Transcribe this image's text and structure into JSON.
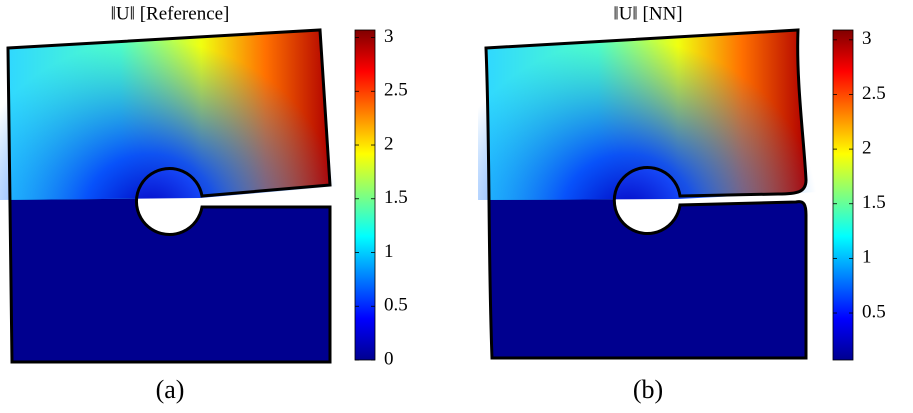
{
  "chart_data": [
    {
      "type": "field",
      "title": "‖U‖ [Reference]",
      "caption": "(a)",
      "colormap": "jet",
      "ylim": [
        0,
        3.07
      ],
      "yticks": [
        0,
        0.5,
        1,
        1.5,
        2,
        2.5,
        3
      ]
    },
    {
      "type": "field",
      "title": "‖U‖ [NN]",
      "caption": "(b)",
      "colormap": "jet",
      "ylim": [
        0.07,
        3.09
      ],
      "yticks": [
        0.5,
        1,
        1.5,
        2,
        2.5,
        3
      ]
    }
  ]
}
